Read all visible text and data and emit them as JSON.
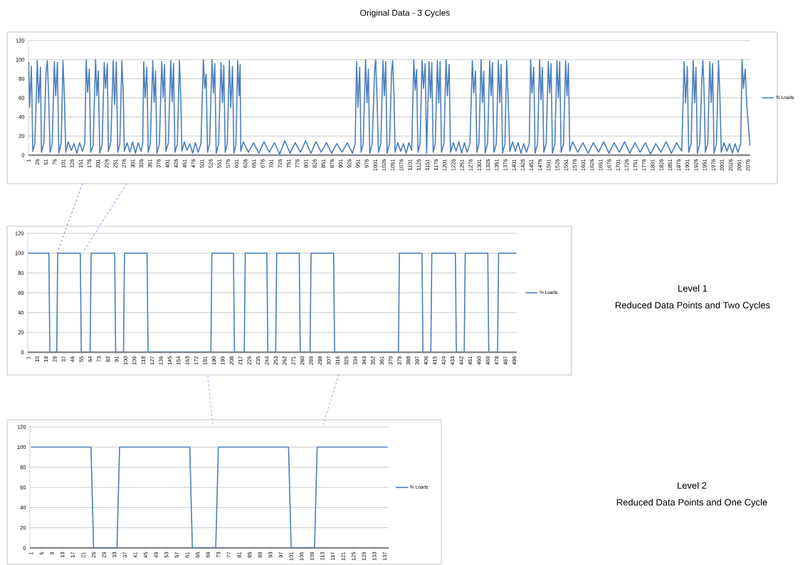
{
  "chart_data": [
    {
      "type": "line",
      "title": "Original Data - 3 Cycles",
      "grid": "y",
      "legend": "right",
      "xlim": [
        0.5,
        2082.5
      ],
      "ylim": [
        0,
        120
      ],
      "yticks": [
        0,
        20,
        40,
        60,
        80,
        100,
        120
      ],
      "xticks": [
        1,
        26,
        51,
        76,
        101,
        126,
        151,
        176,
        201,
        226,
        251,
        276,
        301,
        326,
        351,
        376,
        401,
        426,
        451,
        476,
        501,
        526,
        551,
        576,
        601,
        626,
        651,
        676,
        701,
        726,
        751,
        776,
        801,
        826,
        851,
        876,
        901,
        926,
        951,
        976,
        1001,
        1026,
        1051,
        1076,
        1101,
        1126,
        1151,
        1176,
        1201,
        1226,
        1251,
        1276,
        1301,
        1326,
        1351,
        1376,
        1401,
        1426,
        1451,
        1476,
        1501,
        1526,
        1551,
        1576,
        1601,
        1626,
        1651,
        1676,
        1701,
        1726,
        1751,
        1776,
        1801,
        1826,
        1851,
        1876,
        1901,
        1926,
        1951,
        1976,
        2001,
        2026,
        2051,
        2076
      ],
      "series": [
        {
          "name": "% Loads",
          "color": "#4a7ebb",
          "x": [
            1,
            4,
            9,
            13,
            19,
            26,
            30,
            35,
            38,
            45,
            51,
            55,
            59,
            63,
            69,
            75,
            79,
            84,
            88,
            95,
            100,
            104,
            108,
            115,
            124,
            132,
            140,
            148,
            156,
            163,
            167,
            171,
            176,
            180,
            187,
            194,
            198,
            202,
            206,
            213,
            219,
            223,
            228,
            231,
            238,
            245,
            249,
            254,
            258,
            264,
            270,
            274,
            277,
            285,
            293,
            301,
            309,
            317,
            325,
            330,
            333,
            337,
            342,
            346,
            352,
            359,
            363,
            367,
            371,
            378,
            385,
            389,
            393,
            397,
            404,
            411,
            415,
            419,
            423,
            430,
            436,
            440,
            443,
            450,
            458,
            466,
            474,
            482,
            490,
            498,
            505,
            509,
            513,
            517,
            523,
            530,
            534,
            538,
            542,
            549,
            556,
            560,
            564,
            568,
            574,
            580,
            584,
            589,
            593,
            599,
            604,
            608,
            611,
            613,
            620,
            635,
            650,
            665,
            680,
            695,
            710,
            725,
            740,
            755,
            770,
            785,
            800,
            815,
            830,
            845,
            860,
            875,
            890,
            905,
            920,
            935,
            943,
            947,
            951,
            956,
            960,
            966,
            973,
            977,
            981,
            985,
            992,
            999,
            1002,
            1006,
            1010,
            1017,
            1023,
            1027,
            1031,
            1035,
            1042,
            1048,
            1051,
            1055,
            1058,
            1066,
            1074,
            1082,
            1090,
            1098,
            1106,
            1112,
            1116,
            1120,
            1124,
            1130,
            1136,
            1140,
            1145,
            1149,
            1156,
            1160,
            1164,
            1168,
            1174,
            1180,
            1184,
            1188,
            1192,
            1199,
            1205,
            1209,
            1214,
            1218,
            1226,
            1234,
            1242,
            1250,
            1258,
            1266,
            1274,
            1281,
            1285,
            1290,
            1294,
            1300,
            1306,
            1310,
            1314,
            1318,
            1325,
            1331,
            1335,
            1339,
            1343,
            1350,
            1356,
            1360,
            1364,
            1368,
            1375,
            1380,
            1384,
            1389,
            1397,
            1405,
            1413,
            1421,
            1429,
            1437,
            1445,
            1449,
            1453,
            1458,
            1462,
            1469,
            1475,
            1479,
            1483,
            1487,
            1494,
            1500,
            1504,
            1508,
            1512,
            1519,
            1525,
            1529,
            1533,
            1537,
            1544,
            1550,
            1554,
            1558,
            1562,
            1570,
            1585,
            1600,
            1615,
            1630,
            1645,
            1660,
            1675,
            1690,
            1705,
            1720,
            1735,
            1750,
            1765,
            1780,
            1795,
            1810,
            1825,
            1840,
            1855,
            1870,
            1885,
            1892,
            1896,
            1901,
            1905,
            1912,
            1918,
            1922,
            1926,
            1930,
            1937,
            1943,
            1946,
            1950,
            1953,
            1960,
            1966,
            1970,
            1974,
            1978,
            1985,
            1991,
            1995,
            1999,
            2007,
            2015,
            2023,
            2031,
            2039,
            2047,
            2055,
            2059,
            2063,
            2068,
            2073,
            2082
          ],
          "values": [
            98,
            50,
            93,
            4,
            12,
            99,
            55,
            92,
            3,
            13,
            86,
            99,
            58,
            3,
            12,
            98,
            62,
            97,
            2,
            13,
            99,
            63,
            3,
            14,
            5,
            12,
            2,
            13,
            4,
            12,
            100,
            66,
            90,
            3,
            10,
            100,
            62,
            88,
            2,
            11,
            97,
            70,
            96,
            4,
            14,
            99,
            53,
            98,
            3,
            12,
            99,
            62,
            4,
            13,
            3,
            14,
            2,
            13,
            4,
            12,
            98,
            60,
            92,
            3,
            12,
            99,
            55,
            88,
            2,
            11,
            98,
            60,
            95,
            4,
            13,
            99,
            56,
            96,
            3,
            12,
            99,
            60,
            4,
            14,
            5,
            12,
            2,
            13,
            3,
            12,
            100,
            70,
            85,
            3,
            12,
            100,
            65,
            96,
            2,
            12,
            97,
            55,
            94,
            3,
            12,
            99,
            50,
            93,
            2,
            11,
            99,
            62,
            95,
            4,
            14,
            3,
            13,
            2,
            14,
            3,
            13,
            1,
            15,
            2,
            13,
            3,
            15,
            2,
            14,
            3,
            13,
            2,
            12,
            3,
            13,
            2,
            12,
            98,
            50,
            92,
            3,
            12,
            100,
            55,
            90,
            2,
            12,
            88,
            100,
            60,
            3,
            12,
            99,
            62,
            98,
            2,
            12,
            88,
            99,
            62,
            3,
            13,
            4,
            12,
            2,
            13,
            5,
            100,
            68,
            90,
            3,
            12,
            99,
            70,
            96,
            2,
            98,
            60,
            97,
            3,
            12,
            99,
            55,
            98,
            3,
            12,
            100,
            62,
            95,
            3,
            13,
            4,
            14,
            2,
            13,
            3,
            12,
            99,
            65,
            88,
            3,
            12,
            100,
            55,
            88,
            2,
            13,
            99,
            62,
            97,
            3,
            12,
            99,
            55,
            95,
            2,
            12,
            99,
            62,
            4,
            14,
            4,
            13,
            2,
            12,
            3,
            12,
            100,
            65,
            92,
            2,
            12,
            100,
            58,
            92,
            3,
            12,
            98,
            65,
            96,
            2,
            12,
            99,
            60,
            98,
            3,
            12,
            99,
            62,
            96,
            4,
            14,
            3,
            13,
            2,
            13,
            3,
            14,
            2,
            13,
            3,
            14,
            2,
            13,
            3,
            13,
            1,
            12,
            3,
            14,
            2,
            13,
            4,
            98,
            55,
            93,
            3,
            12,
            99,
            55,
            92,
            2,
            12,
            80,
            99,
            60,
            3,
            12,
            98,
            55,
            96,
            2,
            12,
            99,
            62,
            3,
            13,
            4,
            12,
            2,
            12,
            3,
            12,
            100,
            70,
            90,
            50,
            10
          ]
        }
      ]
    },
    {
      "type": "line",
      "annotations": [
        "Level 1",
        "Reduced Data Points and Two Cycles"
      ],
      "grid": "y",
      "legend": "right",
      "xlim": [
        0.5,
        498.5
      ],
      "ylim": [
        0,
        120
      ],
      "yticks": [
        0,
        20,
        40,
        60,
        80,
        100,
        120
      ],
      "xticks": [
        1,
        10,
        19,
        28,
        37,
        46,
        55,
        64,
        73,
        82,
        91,
        100,
        109,
        118,
        127,
        136,
        145,
        154,
        163,
        172,
        181,
        190,
        199,
        208,
        217,
        226,
        235,
        244,
        253,
        262,
        271,
        280,
        289,
        298,
        307,
        316,
        325,
        334,
        343,
        352,
        361,
        370,
        379,
        388,
        397,
        406,
        415,
        424,
        433,
        442,
        451,
        460,
        469,
        478,
        487,
        496
      ],
      "series": [
        {
          "name": "% Loads",
          "color": "#4a7ebb",
          "x": [
            1,
            22,
            23,
            30,
            31,
            54,
            55,
            64,
            65,
            89,
            90,
            98,
            99,
            122,
            123,
            187,
            188,
            210,
            211,
            221,
            222,
            244,
            245,
            253,
            254,
            277,
            278,
            288,
            289,
            312,
            313,
            378,
            379,
            402,
            403,
            411,
            412,
            436,
            437,
            445,
            446,
            469,
            470,
            479,
            480,
            498
          ],
          "values": [
            100,
            100,
            0,
            0,
            100,
            100,
            0,
            0,
            100,
            100,
            0,
            0,
            100,
            100,
            0,
            0,
            100,
            100,
            0,
            0,
            100,
            100,
            0,
            0,
            100,
            100,
            0,
            0,
            100,
            100,
            0,
            0,
            100,
            100,
            0,
            0,
            100,
            100,
            0,
            0,
            100,
            100,
            0,
            0,
            100,
            100
          ]
        }
      ]
    },
    {
      "type": "line",
      "annotations": [
        "Level 2",
        "Reduced Data Points and One Cycle"
      ],
      "grid": "y",
      "legend": "right",
      "xlim": [
        0.5,
        138.5
      ],
      "ylim": [
        0,
        120
      ],
      "yticks": [
        0,
        20,
        40,
        60,
        80,
        100,
        120
      ],
      "xticks": [
        1,
        5,
        9,
        13,
        17,
        21,
        25,
        29,
        33,
        37,
        41,
        45,
        49,
        53,
        57,
        61,
        65,
        69,
        73,
        77,
        81,
        85,
        89,
        93,
        97,
        101,
        105,
        109,
        113,
        117,
        121,
        125,
        129,
        133,
        137
      ],
      "series": [
        {
          "name": "% Loads",
          "color": "#4a7ebb",
          "x": [
            1,
            24,
            25,
            34,
            35,
            62,
            63,
            72,
            73,
            100,
            101,
            110,
            111,
            138
          ],
          "values": [
            100,
            100,
            0,
            0,
            100,
            100,
            0,
            0,
            100,
            100,
            0,
            0,
            100,
            100
          ]
        }
      ]
    }
  ]
}
